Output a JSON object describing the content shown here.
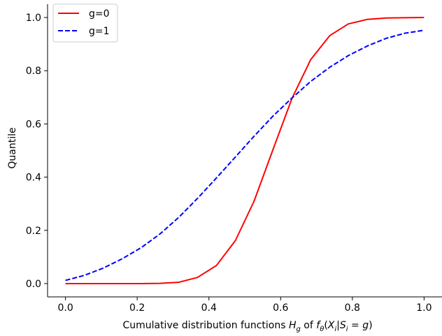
{
  "chart_data": {
    "type": "line",
    "title": "",
    "xlabel": "Cumulative distribution functions H_g of f_θ(X_i|S_i = g)",
    "xlabel_parts": {
      "prefix": "Cumulative distribution functions ",
      "H": "H",
      "g_sub": "g",
      "of": " of ",
      "f": "f",
      "theta_sub": "θ",
      "open": "(",
      "X": "X",
      "i_sub": "i",
      "bar": "|",
      "S": "S",
      "i_sub2": "i",
      "eq": " = ",
      "g": "g",
      "close": ")"
    },
    "ylabel": "Quantile",
    "xlim": [
      -0.05,
      1.05
    ],
    "ylim": [
      -0.05,
      1.05
    ],
    "xticks": [
      0.0,
      0.2,
      0.4,
      0.6,
      0.8,
      1.0
    ],
    "xtick_labels": [
      "0.0",
      "0.2",
      "0.4",
      "0.6",
      "0.8",
      "1.0"
    ],
    "yticks": [
      0.0,
      0.2,
      0.4,
      0.6,
      0.8,
      1.0
    ],
    "ytick_labels": [
      "0.0",
      "0.2",
      "0.4",
      "0.6",
      "0.8",
      "1.0"
    ],
    "grid": false,
    "legend_position": "top-left",
    "series": [
      {
        "name": "g=0",
        "color": "#ff0000",
        "style": "solid",
        "x": [
          0.0,
          0.053,
          0.105,
          0.158,
          0.211,
          0.263,
          0.316,
          0.368,
          0.421,
          0.474,
          0.526,
          0.579,
          0.632,
          0.684,
          0.737,
          0.789,
          0.842,
          0.895,
          0.947,
          1.0
        ],
        "y": [
          0.0,
          0.0,
          0.0,
          0.0,
          0.0,
          0.001,
          0.005,
          0.023,
          0.068,
          0.162,
          0.31,
          0.505,
          0.697,
          0.842,
          0.932,
          0.976,
          0.993,
          0.998,
          0.999,
          1.0
        ]
      },
      {
        "name": "g=1",
        "color": "#0000ff",
        "style": "dashed",
        "x": [
          0.0,
          0.053,
          0.105,
          0.158,
          0.211,
          0.263,
          0.316,
          0.368,
          0.421,
          0.474,
          0.526,
          0.579,
          0.632,
          0.684,
          0.737,
          0.789,
          0.842,
          0.895,
          0.947,
          1.0
        ],
        "y": [
          0.012,
          0.031,
          0.058,
          0.093,
          0.135,
          0.186,
          0.249,
          0.32,
          0.397,
          0.476,
          0.554,
          0.63,
          0.698,
          0.76,
          0.813,
          0.857,
          0.893,
          0.922,
          0.941,
          0.952
        ]
      }
    ]
  }
}
